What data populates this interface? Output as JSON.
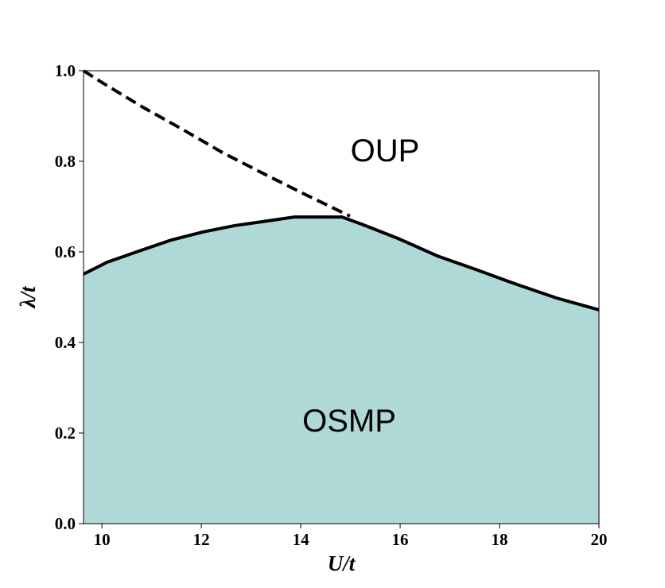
{
  "chart_data": {
    "type": "line",
    "xlabel": "U/t",
    "ylabel": "λ/t",
    "xlim": [
      9.63,
      20
    ],
    "ylim": [
      0,
      1
    ],
    "xticks": [
      10,
      12,
      14,
      16,
      18,
      20
    ],
    "yticks": [
      {
        "value": 0,
        "label": "0.0"
      },
      0.2,
      0.4,
      0.6,
      0.8,
      {
        "value": 1,
        "label": "1.0"
      }
    ],
    "series": [
      {
        "name": "OSMP",
        "color": "#000000",
        "fill": "#afd9d6",
        "linestyle": "solid",
        "x": [
          9.63,
          10.1,
          10.75,
          11.39,
          12.03,
          12.67,
          13.31,
          13.87,
          14.83,
          15.23,
          15.95,
          16.75,
          17.55,
          18.35,
          19.15,
          20
        ],
        "values": [
          0.551,
          0.577,
          0.602,
          0.626,
          0.644,
          0.658,
          0.668,
          0.677,
          0.677,
          0.661,
          0.63,
          0.591,
          0.56,
          0.528,
          0.498,
          0.472
        ]
      },
      {
        "name": "OUP",
        "color": "#000000",
        "linestyle": "dashed",
        "x": [
          9.63,
          10.03,
          10.83,
          11.63,
          12.43,
          13.23,
          14.03,
          14.99
        ],
        "values": [
          1.0,
          0.972,
          0.919,
          0.87,
          0.819,
          0.774,
          0.73,
          0.679
        ]
      }
    ]
  }
}
